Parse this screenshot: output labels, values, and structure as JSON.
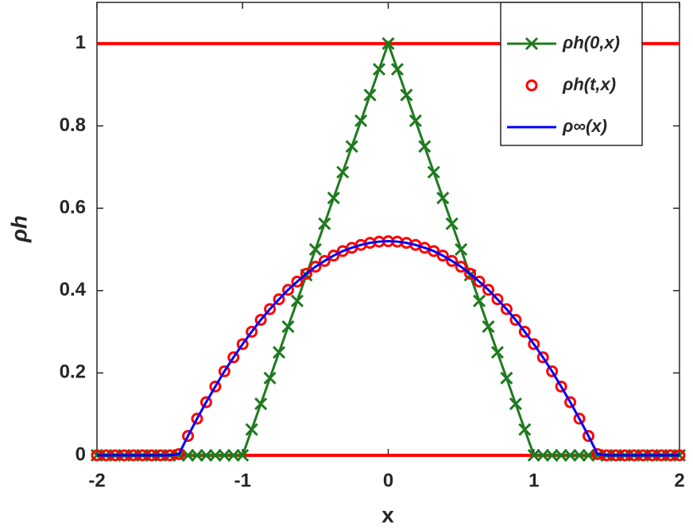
{
  "chart_data": {
    "type": "line",
    "xlabel": "x",
    "ylabel": "ρh",
    "xlim": [
      -2,
      2
    ],
    "ylim": [
      0,
      1.1
    ],
    "xticks": [
      -2,
      -1,
      0,
      1,
      2
    ],
    "yticks": [
      0,
      0.2,
      0.4,
      0.6,
      0.8,
      1
    ],
    "grid": false,
    "legend": "northeast",
    "hlines": [
      {
        "y": 0,
        "color": "#ff0000"
      },
      {
        "y": 1,
        "color": "#ff0000"
      }
    ],
    "x": [
      -2,
      -1.9375,
      -1.875,
      -1.8125,
      -1.75,
      -1.6875,
      -1.625,
      -1.5625,
      -1.5,
      -1.4375,
      -1.375,
      -1.3125,
      -1.25,
      -1.1875,
      -1.125,
      -1.0625,
      -1,
      -0.9375,
      -0.875,
      -0.8125,
      -0.75,
      -0.6875,
      -0.625,
      -0.5625,
      -0.5,
      -0.4375,
      -0.375,
      -0.3125,
      -0.25,
      -0.1875,
      -0.125,
      -0.0625,
      0,
      0.0625,
      0.125,
      0.1875,
      0.25,
      0.3125,
      0.375,
      0.4375,
      0.5,
      0.5625,
      0.625,
      0.6875,
      0.75,
      0.8125,
      0.875,
      0.9375,
      1,
      1.0625,
      1.125,
      1.1875,
      1.25,
      1.3125,
      1.375,
      1.4375,
      1.5,
      1.5625,
      1.625,
      1.6875,
      1.75,
      1.8125,
      1.875,
      1.9375,
      2
    ],
    "series": [
      {
        "name": "ρh(0,x)",
        "color": "#1f7a1f",
        "marker": "x",
        "line": true,
        "values": [
          0,
          0,
          0,
          0,
          0,
          0,
          0,
          0,
          0,
          0,
          0,
          0,
          0,
          0,
          0,
          0,
          0,
          0.0625,
          0.125,
          0.1875,
          0.25,
          0.3125,
          0.375,
          0.4375,
          0.5,
          0.5625,
          0.625,
          0.6875,
          0.75,
          0.8125,
          0.875,
          0.9375,
          1,
          0.9375,
          0.875,
          0.8125,
          0.75,
          0.6875,
          0.625,
          0.5625,
          0.5,
          0.4375,
          0.375,
          0.3125,
          0.25,
          0.1875,
          0.125,
          0.0625,
          0,
          0,
          0,
          0,
          0,
          0,
          0,
          0,
          0,
          0,
          0,
          0,
          0,
          0,
          0,
          0,
          0
        ]
      },
      {
        "name": "ρh(t,x)",
        "color": "#ff0000",
        "marker": "o",
        "line": false,
        "values": [
          0,
          0,
          0,
          0,
          0,
          0,
          0,
          0,
          0,
          0.003,
          0.047,
          0.089,
          0.129,
          0.167,
          0.204,
          0.238,
          0.27,
          0.3,
          0.329,
          0.355,
          0.379,
          0.402,
          0.422,
          0.441,
          0.458,
          0.472,
          0.485,
          0.496,
          0.504,
          0.511,
          0.516,
          0.519,
          0.52,
          0.519,
          0.516,
          0.511,
          0.504,
          0.496,
          0.485,
          0.472,
          0.458,
          0.441,
          0.422,
          0.402,
          0.379,
          0.355,
          0.329,
          0.3,
          0.27,
          0.238,
          0.204,
          0.167,
          0.129,
          0.089,
          0.047,
          0.003,
          0,
          0,
          0,
          0,
          0,
          0,
          0,
          0,
          0
        ]
      },
      {
        "name": "ρ∞(x)",
        "color": "#0000ff",
        "marker": null,
        "line": true,
        "values": [
          0,
          0,
          0,
          0,
          0,
          0,
          0,
          0,
          0,
          0.003,
          0.047,
          0.089,
          0.129,
          0.167,
          0.204,
          0.238,
          0.27,
          0.3,
          0.329,
          0.355,
          0.379,
          0.402,
          0.422,
          0.441,
          0.458,
          0.472,
          0.485,
          0.496,
          0.504,
          0.511,
          0.516,
          0.519,
          0.52,
          0.519,
          0.516,
          0.511,
          0.504,
          0.496,
          0.485,
          0.472,
          0.458,
          0.441,
          0.422,
          0.402,
          0.379,
          0.355,
          0.329,
          0.3,
          0.27,
          0.238,
          0.204,
          0.167,
          0.129,
          0.089,
          0.047,
          0.003,
          0,
          0,
          0,
          0,
          0,
          0,
          0,
          0,
          0
        ]
      }
    ]
  }
}
